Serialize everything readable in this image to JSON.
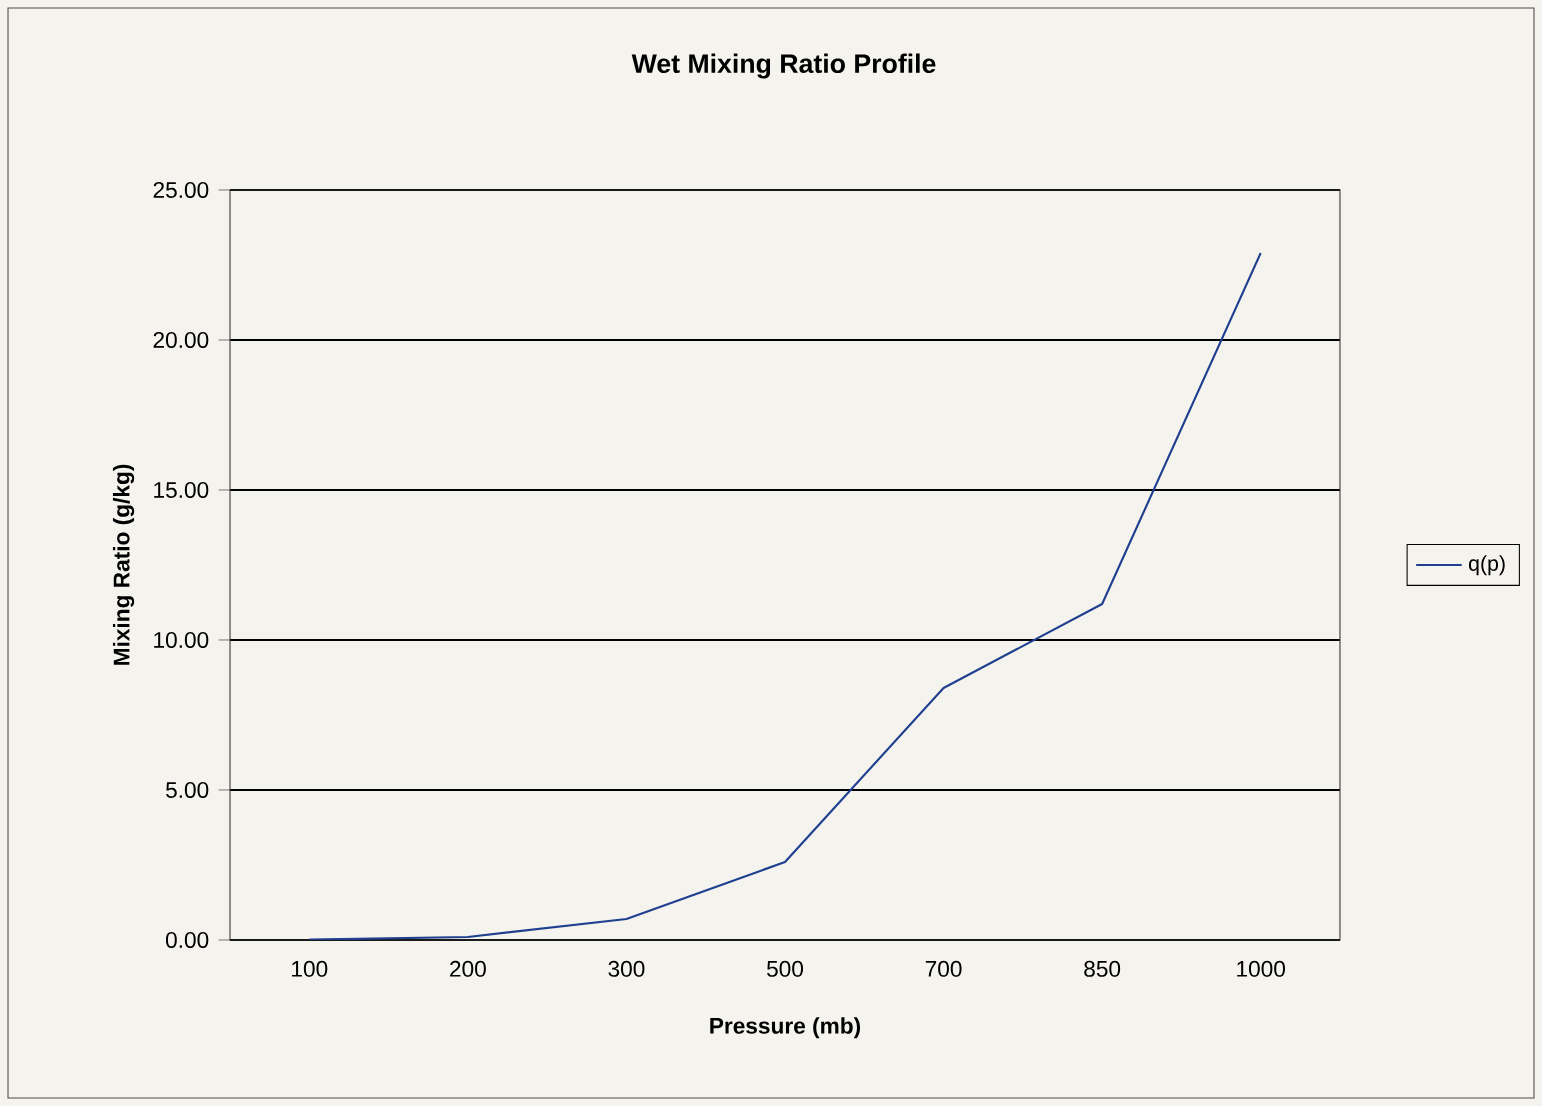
{
  "chart_data": {
    "type": "line",
    "title": "Wet Mixing Ratio Profile",
    "xlabel": "Pressure (mb)",
    "ylabel": "Mixing Ratio (g/kg)",
    "categories": [
      "100",
      "200",
      "300",
      "500",
      "700",
      "850",
      "1000"
    ],
    "series": [
      {
        "name": "q(p)",
        "color": "#1f3f8f",
        "values": [
          0.01,
          0.1,
          0.7,
          2.6,
          8.4,
          11.2,
          22.9
        ]
      }
    ],
    "ylim": [
      0,
      25
    ],
    "yticks": [
      {
        "value": 0,
        "label": "0.00"
      },
      {
        "value": 5,
        "label": "5.00"
      },
      {
        "value": 10,
        "label": "10.00"
      },
      {
        "value": 15,
        "label": "15.00"
      },
      {
        "value": 20,
        "label": "20.00"
      },
      {
        "value": 25,
        "label": "25.00"
      }
    ],
    "grid": "y",
    "legend": "right",
    "marker": "none",
    "line_style": "solid"
  }
}
